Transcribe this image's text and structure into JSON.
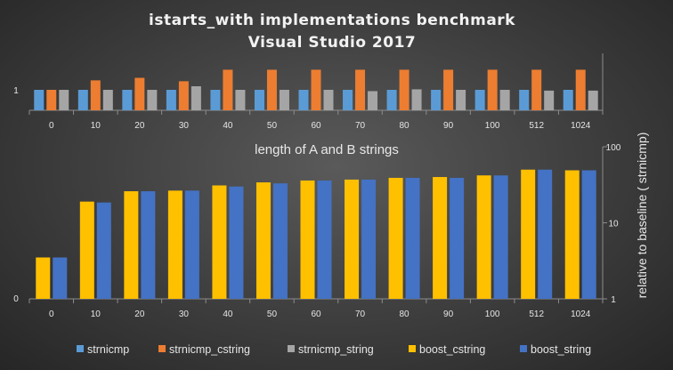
{
  "chart_data": {
    "title_line1": "istarts_with implementations benchmark",
    "title_line2": "Visual Studio 2017",
    "xlabel": "length of A and B strings",
    "ylabel": "relative to baseline ( strnicmp)",
    "categories": [
      "0",
      "10",
      "20",
      "30",
      "40",
      "50",
      "60",
      "70",
      "80",
      "90",
      "100",
      "512",
      "1024"
    ],
    "legend_position": "bottom",
    "charts": [
      {
        "type": "bar",
        "scale": "log",
        "ytick_labels": [
          "1"
        ],
        "series": [
          {
            "name": "strnicmp",
            "color": "#5b9bd5",
            "values": [
              1,
              1,
              1,
              1,
              1,
              1,
              1,
              1,
              1,
              1,
              1,
              1,
              1
            ]
          },
          {
            "name": "strnicmp_cstring",
            "color": "#ed7d31",
            "values": [
              1,
              1.45,
              1.6,
              1.4,
              2.2,
              2.2,
              2.2,
              2.2,
              2.2,
              2.2,
              2.2,
              2.2,
              2.2
            ]
          },
          {
            "name": "strnicmp_string",
            "color": "#a5a5a5",
            "values": [
              1,
              1,
              1,
              1.15,
              1,
              1,
              1,
              0.95,
              1.02,
              1,
              1,
              0.97,
              0.97
            ]
          }
        ]
      },
      {
        "type": "bar",
        "scale": "log",
        "ylim": [
          1,
          100
        ],
        "ytick_labels": [
          "1",
          "10",
          "100"
        ],
        "left_tick_label": "0",
        "series": [
          {
            "name": "boost_cstring",
            "color": "#ffc000",
            "values": [
              3.5,
              19,
              26,
              26.5,
              31,
              34,
              36,
              37,
              39,
              40,
              42,
              50,
              49
            ]
          },
          {
            "name": "boost_string",
            "color": "#4472c4",
            "values": [
              3.5,
              18.5,
              26,
              26.5,
              30,
              33,
              36,
              37,
              39,
              39,
              42,
              50,
              49
            ]
          }
        ]
      }
    ]
  }
}
